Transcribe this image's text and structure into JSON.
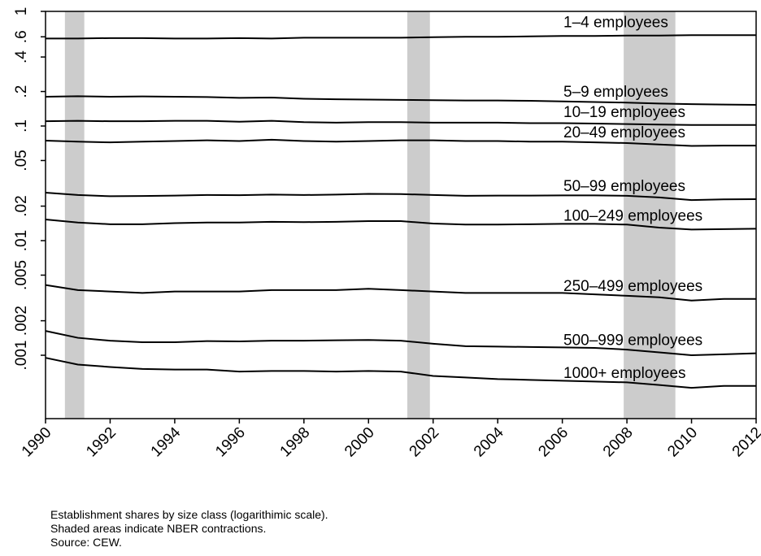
{
  "chart_data": {
    "type": "line",
    "log_y": true,
    "x": [
      1990,
      1991,
      1992,
      1993,
      1994,
      1995,
      1996,
      1997,
      1998,
      1999,
      2000,
      2001,
      2002,
      2003,
      2004,
      2005,
      2006,
      2007,
      2008,
      2009,
      2010,
      2011,
      2012
    ],
    "xlim": [
      1990,
      2012
    ],
    "xticks": [
      1990,
      1992,
      1994,
      1996,
      1998,
      2000,
      2002,
      2004,
      2006,
      2008,
      2010,
      2012
    ],
    "ylim": [
      0.00028,
      1
    ],
    "yticks": [
      1,
      {
        "value": 0.6,
        "label": ".6"
      },
      {
        "value": 0.4,
        "label": ".4"
      },
      {
        "value": 0.2,
        "label": ".2"
      },
      {
        "value": 0.1,
        "label": ".1"
      },
      {
        "value": 0.05,
        "label": ".05"
      },
      {
        "value": 0.02,
        "label": ".02"
      },
      {
        "value": 0.01,
        "label": ".01"
      },
      {
        "value": 0.005,
        "label": ".005"
      },
      {
        "value": 0.002,
        "label": ".002"
      },
      {
        "value": 0.001,
        "label": ".001"
      }
    ],
    "shaded_periods": [
      [
        1990.6,
        1991.2
      ],
      [
        2001.2,
        2001.9
      ],
      [
        2007.9,
        2009.5
      ]
    ],
    "shade_color": "#cccccc",
    "series": [
      {
        "name": "1–4 employees",
        "color": "#000000",
        "values": [
          0.58,
          0.58,
          0.585,
          0.585,
          0.58,
          0.58,
          0.585,
          0.58,
          0.59,
          0.59,
          0.59,
          0.59,
          0.595,
          0.6,
          0.6,
          0.605,
          0.61,
          0.61,
          0.615,
          0.615,
          0.62,
          0.62,
          0.62
        ]
      },
      {
        "name": "5–9 employees",
        "color": "#000000",
        "values": [
          0.18,
          0.182,
          0.18,
          0.181,
          0.18,
          0.179,
          0.176,
          0.177,
          0.173,
          0.171,
          0.17,
          0.169,
          0.168,
          0.167,
          0.167,
          0.166,
          0.164,
          0.162,
          0.16,
          0.157,
          0.155,
          0.154,
          0.153
        ]
      },
      {
        "name": "10–19 employees",
        "color": "#000000",
        "values": [
          0.11,
          0.111,
          0.11,
          0.11,
          0.111,
          0.111,
          0.109,
          0.111,
          0.108,
          0.107,
          0.108,
          0.108,
          0.107,
          0.107,
          0.107,
          0.106,
          0.106,
          0.105,
          0.104,
          0.103,
          0.102,
          0.102,
          0.102
        ]
      },
      {
        "name": "20–49 employees",
        "color": "#000000",
        "values": [
          0.0745,
          0.073,
          0.072,
          0.073,
          0.074,
          0.075,
          0.074,
          0.076,
          0.074,
          0.073,
          0.074,
          0.075,
          0.075,
          0.074,
          0.074,
          0.073,
          0.073,
          0.072,
          0.071,
          0.069,
          0.067,
          0.0675,
          0.0675
        ]
      },
      {
        "name": "50–99 employees",
        "color": "#000000",
        "values": [
          0.0262,
          0.025,
          0.0244,
          0.0245,
          0.0247,
          0.025,
          0.0249,
          0.0252,
          0.025,
          0.0252,
          0.0256,
          0.0255,
          0.025,
          0.0246,
          0.0247,
          0.0247,
          0.0248,
          0.0248,
          0.0246,
          0.0238,
          0.0226,
          0.0229,
          0.023
        ]
      },
      {
        "name": "100–249 employees",
        "color": "#000000",
        "values": [
          0.0153,
          0.0144,
          0.0139,
          0.0139,
          0.0142,
          0.0144,
          0.0144,
          0.0146,
          0.0145,
          0.0146,
          0.0148,
          0.0148,
          0.0141,
          0.0138,
          0.0138,
          0.0139,
          0.014,
          0.014,
          0.0138,
          0.013,
          0.0125,
          0.0126,
          0.0127
        ]
      },
      {
        "name": "250–499 employees",
        "color": "#000000",
        "values": [
          0.0041,
          0.0037,
          0.0036,
          0.0035,
          0.0036,
          0.0036,
          0.0036,
          0.0037,
          0.0037,
          0.0037,
          0.0038,
          0.0037,
          0.0036,
          0.0035,
          0.0035,
          0.0035,
          0.0035,
          0.0034,
          0.0033,
          0.0032,
          0.003,
          0.0031,
          0.0031
        ]
      },
      {
        "name": "500–999 employees",
        "color": "#000000",
        "values": [
          0.00163,
          0.00142,
          0.00134,
          0.0013,
          0.0013,
          0.00133,
          0.00132,
          0.00134,
          0.00134,
          0.00135,
          0.00136,
          0.00134,
          0.00126,
          0.0012,
          0.00119,
          0.00118,
          0.00117,
          0.00116,
          0.00112,
          0.00106,
          0.001,
          0.00102,
          0.00104
        ]
      },
      {
        "name": "1000+ employees",
        "color": "#000000",
        "values": [
          0.00095,
          0.00083,
          0.00079,
          0.00076,
          0.00075,
          0.00075,
          0.00072,
          0.00073,
          0.00073,
          0.00072,
          0.00073,
          0.00072,
          0.00066,
          0.00064,
          0.00062,
          0.00061,
          0.0006,
          0.00059,
          0.00058,
          0.00055,
          0.00052,
          0.00054,
          0.00054
        ]
      }
    ],
    "notes": [
      "Establishment shares by size class (logarithimic scale).",
      "Shaded areas indicate NBER contractions.",
      "Source: CEW."
    ]
  }
}
